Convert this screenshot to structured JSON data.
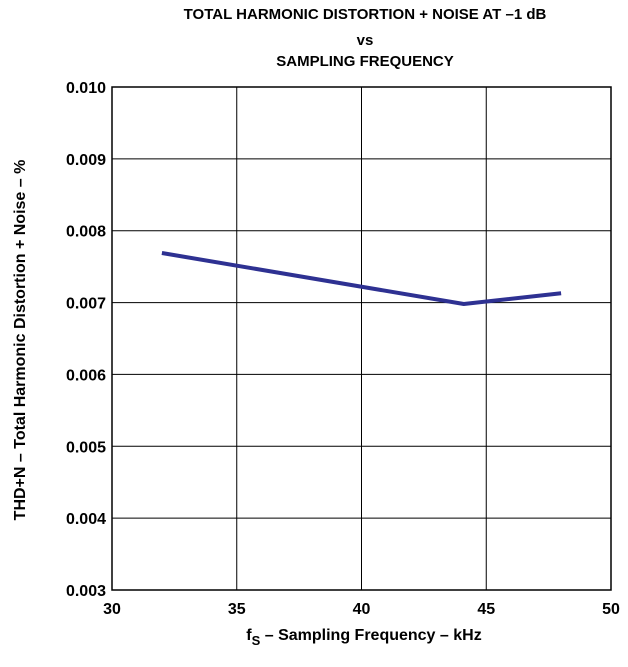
{
  "chart_data": {
    "type": "line",
    "title_lines": [
      "TOTAL HARMONIC DISTORTION + NOISE AT –1 dB",
      "vs",
      "SAMPLING FREQUENCY"
    ],
    "xlabel_main": "f",
    "xlabel_sub": "S",
    "xlabel_rest": " – Sampling Frequency – kHz",
    "ylabel": "THD+N – Total Harmonic Distortion + Noise – %",
    "xlim": [
      30,
      50
    ],
    "ylim": [
      0.003,
      0.01
    ],
    "xticks": [
      30,
      35,
      40,
      45,
      50
    ],
    "xtick_labels": [
      "30",
      "35",
      "40",
      "45",
      "50"
    ],
    "yticks": [
      0.003,
      0.004,
      0.005,
      0.006,
      0.007,
      0.008,
      0.009,
      0.01
    ],
    "ytick_labels": [
      "0.003",
      "0.004",
      "0.005",
      "0.006",
      "0.007",
      "0.008",
      "0.009",
      "0.010"
    ],
    "grid": true,
    "series": [
      {
        "x": [
          32,
          44.1,
          48
        ],
        "y": [
          0.00769,
          0.00698,
          0.00713
        ],
        "color": "#2e3192"
      }
    ]
  }
}
